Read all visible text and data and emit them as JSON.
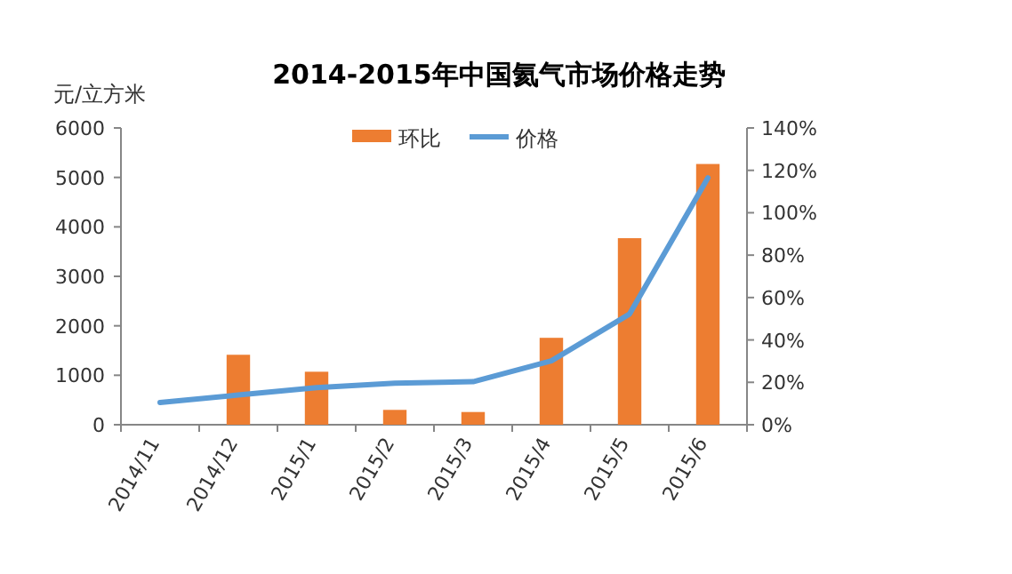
{
  "chart_data": {
    "type": "bar",
    "title": "2014-2015年中国氦气市场价格走势",
    "ylabel": "元/立方米",
    "categories": [
      "2014/11",
      "2014/12",
      "2015/1",
      "2015/2",
      "2015/3",
      "2015/4",
      "2015/5",
      "2015/6"
    ],
    "series": [
      {
        "name": "环比",
        "axis": "y2",
        "color": "#ed7d31",
        "values": [
          null,
          33,
          25,
          7,
          6,
          41,
          88,
          123
        ]
      },
      {
        "name": "价格",
        "type": "line",
        "color": "#5b9bd5",
        "values": [
          450,
          600,
          750,
          840,
          870,
          1290,
          2240,
          4990
        ]
      }
    ],
    "ylim": [
      0,
      6000
    ],
    "yticks": [
      0,
      1000,
      2000,
      3000,
      4000,
      5000,
      6000
    ],
    "y2lim": [
      0,
      140
    ],
    "y2ticks": [
      {
        "value": 0,
        "label": "0%"
      },
      {
        "value": 20,
        "label": "20%"
      },
      {
        "value": 40,
        "label": "40%"
      },
      {
        "value": 60,
        "label": "60%"
      },
      {
        "value": 80,
        "label": "80%"
      },
      {
        "value": 100,
        "label": "100%"
      },
      {
        "value": 120,
        "label": "120%"
      },
      {
        "value": 140,
        "label": "140%"
      }
    ],
    "legend": "top",
    "marker": "none",
    "line_style": "solid",
    "grid": false
  }
}
